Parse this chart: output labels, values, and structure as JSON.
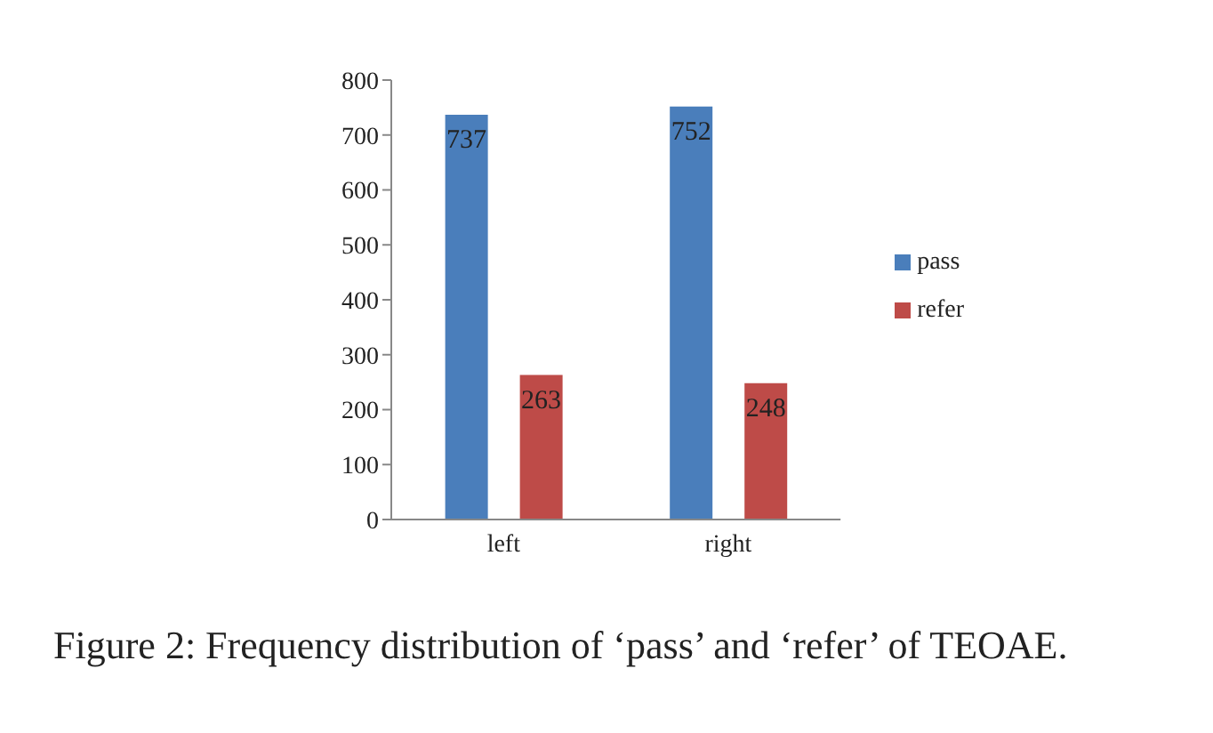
{
  "chart_data": {
    "type": "bar",
    "categories": [
      "left",
      "right"
    ],
    "series": [
      {
        "name": "pass",
        "color": "#4a7ebb",
        "values": [
          737,
          752
        ]
      },
      {
        "name": "refer",
        "color": "#be4b48",
        "values": [
          263,
          248
        ]
      }
    ],
    "ylim": [
      0,
      800
    ],
    "yticks": [
      0,
      100,
      200,
      300,
      400,
      500,
      600,
      700,
      800
    ],
    "data_labels": true,
    "legend": "right",
    "grid": false,
    "annotations": [
      "Figure 2: Frequency distribution of ‘pass’ and ‘refer’ of TEOAE."
    ]
  }
}
